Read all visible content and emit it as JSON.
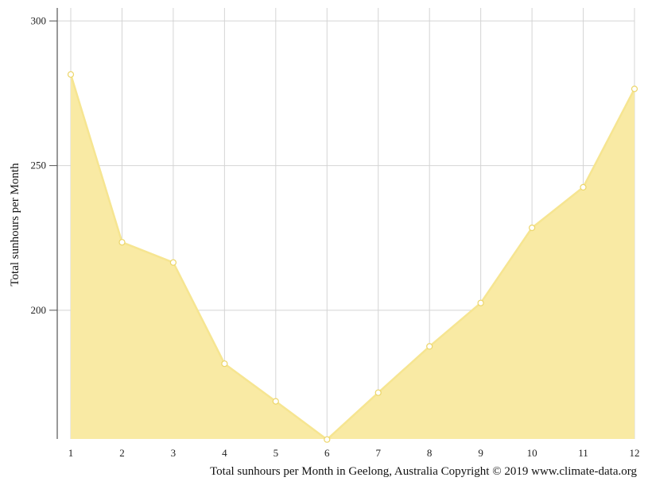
{
  "chart_data": {
    "type": "area",
    "title": "",
    "xlabel": "",
    "ylabel": "Total sunhours per Month",
    "caption": "Total sunhours per Month in Geelong, Australia Copyright © 2019 www.climate-data.org",
    "x": [
      1,
      2,
      3,
      4,
      5,
      6,
      7,
      8,
      9,
      10,
      11,
      12
    ],
    "x_tick_labels": [
      "1",
      "2",
      "3",
      "4",
      "5",
      "6",
      "7",
      "8",
      "9",
      "10",
      "11",
      "12"
    ],
    "y_ticks": [
      200,
      250,
      300
    ],
    "y_tick_labels": [
      "200",
      "250",
      "300"
    ],
    "ylim": [
      155.5,
      304.5
    ],
    "grid": true,
    "series": [
      {
        "values": [
          281.5,
          223.5,
          216.5,
          181.5,
          168.5,
          155.3,
          171.5,
          187.5,
          202.5,
          228.5,
          242.5,
          276.5
        ]
      }
    ],
    "colors": {
      "fill": "#f9eaa4",
      "line": "#f6e591",
      "marker_stroke": "#ecd66a",
      "marker_fill": "#ffffff",
      "grid": "#d4d4d4",
      "axis": "#555555"
    }
  }
}
